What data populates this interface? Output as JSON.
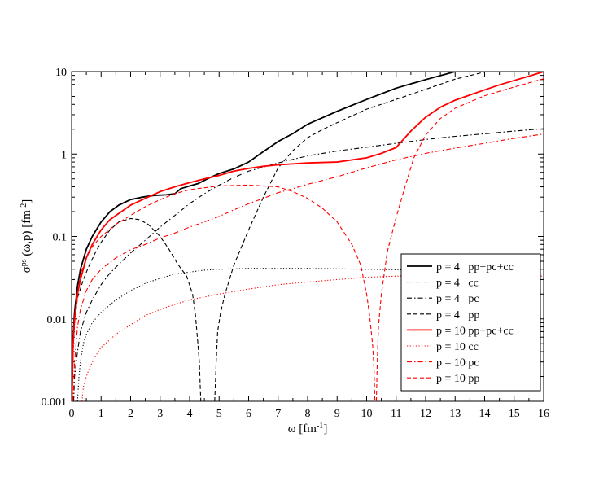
{
  "chart_data": {
    "type": "line",
    "title": "",
    "xlabel": {
      "base": "ω  [fm",
      "sup": "-1",
      "tail": "]"
    },
    "ylabel": {
      "sigma": "σ",
      "sup1": "ps",
      "mid": " (ω,p)  [fm",
      "sup2": "-2",
      "tail": "]"
    },
    "xlim": [
      0,
      16
    ],
    "ylim": [
      0.001,
      10
    ],
    "yscale": "log",
    "grid": false,
    "legend_position": "bottom-right",
    "x_ticks": [
      0,
      1,
      2,
      3,
      4,
      5,
      6,
      7,
      8,
      9,
      10,
      11,
      12,
      13,
      14,
      15,
      16
    ],
    "x_tick_labels": [
      "0",
      "1",
      "2",
      "3",
      "4",
      "5",
      "6",
      "7",
      "8",
      "9",
      "10",
      "11",
      "12",
      "13",
      "14",
      "15",
      "16"
    ],
    "y_ticks": [
      0.001,
      0.01,
      0.1,
      1,
      10
    ],
    "y_tick_labels": [
      "0.001",
      "0.01",
      "0.1",
      "1",
      "10"
    ],
    "series": [
      {
        "name": "p = 4   pp+pc+cc",
        "color": "#000000",
        "style": "solid",
        "width": 1.8,
        "x": [
          0.01,
          0.05,
          0.1,
          0.2,
          0.3,
          0.5,
          0.7,
          1.0,
          1.3,
          1.6,
          2.0,
          2.4,
          2.8,
          3.2,
          3.5,
          3.7,
          4.0,
          4.3,
          4.6,
          5.0,
          5.5,
          6.0,
          6.5,
          7.0,
          7.5,
          8.0,
          9.0,
          10.0,
          11.0,
          12.0,
          13.0
        ],
        "y": [
          0.001,
          0.006,
          0.012,
          0.025,
          0.04,
          0.07,
          0.1,
          0.15,
          0.2,
          0.24,
          0.28,
          0.3,
          0.315,
          0.32,
          0.33,
          0.38,
          0.41,
          0.44,
          0.5,
          0.58,
          0.66,
          0.8,
          1.07,
          1.42,
          1.77,
          2.3,
          3.3,
          4.6,
          6.3,
          8.0,
          10.0
        ]
      },
      {
        "name": "p = 4   cc",
        "color": "#000000",
        "style": "dotted",
        "width": 1.1,
        "x": [
          0.2,
          0.25,
          0.3,
          0.4,
          0.5,
          0.7,
          1.0,
          1.5,
          2.0,
          2.5,
          3.0,
          3.5,
          4.0,
          4.5,
          5.0,
          6.0,
          7.0,
          8.0,
          10.0,
          12.0,
          14.0,
          16.0
        ],
        "y": [
          0.001,
          0.002,
          0.003,
          0.005,
          0.0065,
          0.009,
          0.012,
          0.017,
          0.022,
          0.027,
          0.031,
          0.035,
          0.037,
          0.039,
          0.04,
          0.041,
          0.041,
          0.041,
          0.04,
          0.039,
          0.037,
          0.035
        ]
      },
      {
        "name": "p = 4   pc",
        "color": "#000000",
        "style": "dashdot",
        "width": 1.1,
        "x": [
          0.07,
          0.1,
          0.2,
          0.3,
          0.5,
          0.7,
          1.0,
          1.3,
          1.6,
          2.0,
          2.5,
          3.0,
          3.5,
          4.0,
          4.5,
          5.0,
          5.5,
          6.0,
          7.0,
          8.0,
          9.0,
          10.0,
          11.0,
          12.0,
          13.0,
          14.0,
          15.0,
          16.0
        ],
        "y": [
          0.001,
          0.002,
          0.004,
          0.007,
          0.012,
          0.017,
          0.026,
          0.036,
          0.046,
          0.063,
          0.09,
          0.13,
          0.18,
          0.25,
          0.33,
          0.42,
          0.52,
          0.62,
          0.78,
          0.95,
          1.09,
          1.21,
          1.35,
          1.5,
          1.64,
          1.76,
          1.9,
          2.03
        ]
      },
      {
        "name": "p = 4   pp",
        "color": "#000000",
        "style": "dashed",
        "width": 1.1,
        "x": [
          0.01,
          0.05,
          0.1,
          0.2,
          0.4,
          0.6,
          0.8,
          1.0,
          1.3,
          1.6,
          2.0,
          2.3,
          2.6,
          3.0,
          3.3,
          3.6,
          3.9,
          4.1,
          4.2,
          4.28,
          4.33,
          4.36,
          4.38,
          null,
          4.85,
          4.87,
          4.9,
          4.95,
          5.05,
          5.2,
          5.5,
          6.0,
          6.5,
          7.0,
          7.5,
          8.0,
          8.5,
          9.0,
          10.0,
          11.0,
          12.0,
          13.0,
          14.0,
          14.2
        ],
        "y": [
          0.001,
          0.004,
          0.009,
          0.018,
          0.03,
          0.045,
          0.063,
          0.085,
          0.12,
          0.15,
          0.165,
          0.16,
          0.14,
          0.1,
          0.07,
          0.046,
          0.033,
          0.02,
          0.011,
          0.005,
          0.003,
          0.0015,
          0.001,
          null,
          0.001,
          0.0015,
          0.003,
          0.007,
          0.012,
          0.02,
          0.045,
          0.12,
          0.3,
          0.68,
          1.1,
          1.58,
          1.98,
          2.4,
          3.5,
          4.6,
          6.1,
          8.1,
          9.9,
          10.0
        ]
      },
      {
        "name": "p = 10 pp+pc+cc",
        "color": "#ff0000",
        "style": "solid",
        "width": 1.8,
        "x": [
          0.01,
          0.05,
          0.1,
          0.2,
          0.3,
          0.5,
          0.7,
          1.0,
          1.3,
          1.6,
          2.0,
          2.5,
          3.0,
          3.5,
          4.0,
          4.5,
          5.0,
          5.5,
          6.0,
          6.5,
          7.0,
          8.0,
          9.0,
          10.0,
          10.5,
          11.0,
          11.5,
          12.0,
          12.5,
          13.0,
          13.5,
          14.0,
          14.5,
          15.0,
          15.5,
          16.0
        ],
        "y": [
          0.001,
          0.005,
          0.01,
          0.02,
          0.03,
          0.055,
          0.08,
          0.12,
          0.16,
          0.19,
          0.24,
          0.29,
          0.35,
          0.4,
          0.45,
          0.5,
          0.55,
          0.62,
          0.67,
          0.71,
          0.74,
          0.78,
          0.8,
          0.9,
          1.02,
          1.2,
          1.9,
          2.8,
          3.7,
          4.5,
          5.2,
          6.0,
          6.9,
          7.8,
          8.8,
          10.0
        ]
      },
      {
        "name": "p = 10 cc",
        "color": "#ff0000",
        "style": "dotted",
        "width": 1.1,
        "x": [
          0.35,
          0.4,
          0.5,
          0.6,
          0.8,
          1.0,
          1.5,
          2.0,
          2.5,
          3.0,
          3.5,
          4.0,
          5.0,
          6.0,
          7.0,
          8.0,
          9.0,
          10.0,
          11.0,
          12.0,
          13.0,
          14.0,
          15.0,
          16.0
        ],
        "y": [
          0.001,
          0.0015,
          0.002,
          0.0025,
          0.0035,
          0.0045,
          0.0065,
          0.0085,
          0.011,
          0.013,
          0.015,
          0.017,
          0.02,
          0.023,
          0.026,
          0.028,
          0.03,
          0.032,
          0.033,
          0.034,
          0.034,
          0.034,
          0.033,
          0.033
        ]
      },
      {
        "name": "p = 10 pc",
        "color": "#ff0000",
        "style": "dashdot",
        "width": 1.1,
        "x": [
          0.05,
          0.1,
          0.2,
          0.3,
          0.5,
          0.7,
          1.0,
          1.5,
          2.0,
          2.5,
          3.0,
          3.5,
          4.0,
          4.5,
          5.0,
          5.5,
          6.0,
          6.5,
          7.0,
          7.5,
          8.0,
          9.0,
          10.0,
          11.0,
          12.0,
          13.0,
          14.0,
          15.0,
          16.0
        ],
        "y": [
          0.001,
          0.003,
          0.008,
          0.013,
          0.022,
          0.03,
          0.04,
          0.055,
          0.069,
          0.08,
          0.096,
          0.11,
          0.13,
          0.15,
          0.175,
          0.21,
          0.25,
          0.29,
          0.34,
          0.38,
          0.43,
          0.53,
          0.68,
          0.85,
          1.02,
          1.18,
          1.35,
          1.55,
          1.75
        ]
      },
      {
        "name": "p = 10 pp",
        "color": "#ff0000",
        "style": "dashed",
        "width": 1.1,
        "x": [
          0.01,
          0.05,
          0.1,
          0.2,
          0.3,
          0.5,
          0.7,
          1.0,
          1.5,
          2.0,
          2.5,
          3.0,
          3.5,
          4.0,
          5.0,
          6.0,
          7.0,
          7.5,
          8.0,
          8.5,
          9.0,
          9.5,
          9.8,
          10.0,
          10.1,
          10.2,
          10.25,
          10.28,
          null,
          10.33,
          10.36,
          10.4,
          10.5,
          10.7,
          11.0,
          11.3,
          11.6,
          12.0,
          12.5,
          13.0,
          14.0,
          15.0,
          16.0
        ],
        "y": [
          0.001,
          0.004,
          0.009,
          0.02,
          0.035,
          0.055,
          0.075,
          0.1,
          0.14,
          0.18,
          0.23,
          0.28,
          0.33,
          0.37,
          0.41,
          0.42,
          0.4,
          0.35,
          0.29,
          0.22,
          0.15,
          0.08,
          0.045,
          0.02,
          0.011,
          0.005,
          0.0025,
          0.001,
          null,
          0.001,
          0.003,
          0.008,
          0.02,
          0.065,
          0.17,
          0.4,
          0.9,
          1.7,
          2.7,
          3.6,
          5.1,
          6.5,
          8.2
        ]
      }
    ]
  }
}
